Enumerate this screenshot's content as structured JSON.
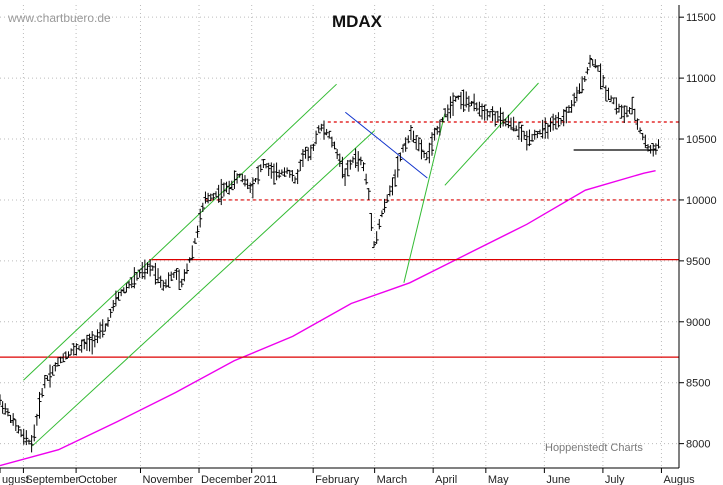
{
  "chart_data": {
    "type": "ohlc",
    "title": "MDAX",
    "watermark": "www.chartbuero.de",
    "credit": "Hoppenstedt Charts",
    "ylim": [
      7800,
      11600
    ],
    "y_ticks": [
      8000,
      8500,
      9000,
      9500,
      10000,
      10500,
      11000,
      11500
    ],
    "x_labels": [
      "ugust",
      "September",
      "October",
      "November",
      "December",
      "2011",
      "February",
      "March",
      "April",
      "May",
      "June",
      "July",
      "Augus"
    ],
    "x_label_positions": [
      0,
      0.4,
      1.3,
      2.4,
      3.4,
      4.3,
      5.35,
      6.4,
      7.4,
      8.3,
      9.3,
      10.3,
      11.3
    ],
    "xlim": [
      0,
      11.6
    ],
    "price_series": {
      "name": "MDAX",
      "x": [
        0,
        0.2,
        0.4,
        0.55,
        0.75,
        0.9,
        1.05,
        1.2,
        1.4,
        1.6,
        1.8,
        2.0,
        2.2,
        2.4,
        2.6,
        2.8,
        3.0,
        3.1,
        3.3,
        3.5,
        3.7,
        3.9,
        4.1,
        4.3,
        4.5,
        4.7,
        4.9,
        5.05,
        5.2,
        5.3,
        5.45,
        5.6,
        5.75,
        5.9,
        6.05,
        6.2,
        6.3,
        6.4,
        6.5,
        6.65,
        6.75,
        6.9,
        7.05,
        7.2,
        7.3,
        7.45,
        7.6,
        7.8,
        8.0,
        8.2,
        8.4,
        8.6,
        8.8,
        9.0,
        9.2,
        9.4,
        9.6,
        9.8,
        9.95,
        10.1,
        10.2,
        10.35,
        10.5,
        10.65,
        10.8,
        10.95,
        11.1,
        11.25
      ],
      "values": [
        8350,
        8200,
        8050,
        8000,
        8500,
        8600,
        8700,
        8750,
        8800,
        8850,
        8950,
        9200,
        9300,
        9400,
        9450,
        9300,
        9400,
        9300,
        9600,
        10000,
        10050,
        10100,
        10200,
        10100,
        10300,
        10200,
        10250,
        10150,
        10400,
        10350,
        10600,
        10550,
        10400,
        10200,
        10350,
        10300,
        10050,
        9600,
        9850,
        10050,
        10200,
        10450,
        10550,
        10400,
        10350,
        10550,
        10700,
        10850,
        10800,
        10750,
        10700,
        10650,
        10600,
        10500,
        10550,
        10600,
        10650,
        10800,
        10950,
        11150,
        11100,
        10900,
        10800,
        10700,
        10750,
        10550,
        10400,
        10450
      ]
    },
    "moving_average": {
      "name": "",
      "color": "#ee00ee",
      "x": [
        0,
        1,
        2,
        3,
        4,
        5,
        6,
        7,
        8,
        9,
        10,
        11,
        11.2
      ],
      "values": [
        7820,
        7950,
        8180,
        8420,
        8680,
        8880,
        9150,
        9320,
        9560,
        9800,
        10080,
        10220,
        10240
      ]
    },
    "support_lines": [
      {
        "value": 8710,
        "style": "solid",
        "color": "#dd0000",
        "x_start": 0,
        "x_end": 11.6
      },
      {
        "value": 9510,
        "style": "solid",
        "color": "#dd0000",
        "x_start": 2.55,
        "x_end": 11.6
      },
      {
        "value": 10000,
        "style": "dashed",
        "color": "#dd0000",
        "x_start": 3.5,
        "x_end": 11.6
      },
      {
        "value": 10640,
        "style": "dashed",
        "color": "#dd0000",
        "x_start": 5.6,
        "x_end": 11.6
      },
      {
        "value": 10410,
        "style": "solid",
        "color": "#000000",
        "x_start": 9.8,
        "x_end": 11.2
      }
    ],
    "trend_lines": [
      {
        "color": "#33bb33",
        "from": [
          0.4,
          8520
        ],
        "to": [
          5.75,
          10950
        ]
      },
      {
        "color": "#33bb33",
        "from": [
          0.55,
          7980
        ],
        "to": [
          6.4,
          10570
        ]
      },
      {
        "color": "#33bb33",
        "from": [
          6.9,
          9320
        ],
        "to": [
          7.6,
          10710
        ]
      },
      {
        "color": "#33bb33",
        "from": [
          7.6,
          10120
        ],
        "to": [
          9.2,
          10960
        ]
      },
      {
        "color": "#1133cc",
        "from": [
          5.9,
          10720
        ],
        "to": [
          7.3,
          10180
        ]
      }
    ],
    "grid": true
  }
}
